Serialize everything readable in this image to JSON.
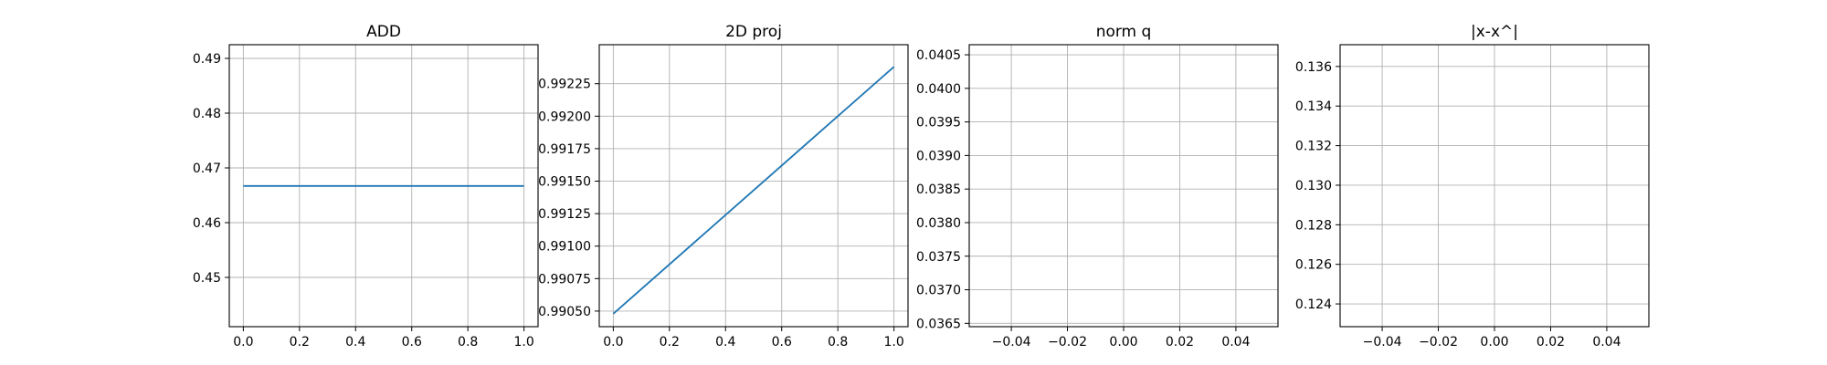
{
  "chart_data": [
    {
      "type": "line",
      "title": "ADD",
      "xlabel": "",
      "ylabel": "",
      "xlim": [
        -0.05,
        1.05
      ],
      "ylim": [
        0.441,
        0.4925
      ],
      "xticks": [
        "0.0",
        "0.2",
        "0.4",
        "0.6",
        "0.8",
        "1.0"
      ],
      "xtick_values": [
        0.0,
        0.2,
        0.4,
        0.6,
        0.8,
        1.0
      ],
      "yticks": [
        "0.45",
        "0.46",
        "0.47",
        "0.48",
        "0.49"
      ],
      "ytick_values": [
        0.45,
        0.46,
        0.47,
        0.48,
        0.49
      ],
      "grid": true,
      "series": [
        {
          "x": [
            0.0,
            1.0
          ],
          "y": [
            0.4667,
            0.4667
          ],
          "color": "#1f77b4"
        }
      ]
    },
    {
      "type": "line",
      "title": "2D proj",
      "xlabel": "",
      "ylabel": "",
      "xlim": [
        -0.05,
        1.05
      ],
      "ylim": [
        0.99038,
        0.99255
      ],
      "xticks": [
        "0.0",
        "0.2",
        "0.4",
        "0.6",
        "0.8",
        "1.0"
      ],
      "xtick_values": [
        0.0,
        0.2,
        0.4,
        0.6,
        0.8,
        1.0
      ],
      "yticks": [
        "0.99050",
        "0.99075",
        "0.99100",
        "0.99125",
        "0.99150",
        "0.99175",
        "0.99200",
        "0.99225"
      ],
      "ytick_values": [
        0.9905,
        0.99075,
        0.991,
        0.99125,
        0.9915,
        0.99175,
        0.992,
        0.99225
      ],
      "grid": true,
      "series": [
        {
          "x": [
            0.0,
            1.0
          ],
          "y": [
            0.99048,
            0.99238
          ],
          "color": "#1f77b4"
        }
      ]
    },
    {
      "type": "line",
      "title": "norm q",
      "xlabel": "",
      "ylabel": "",
      "xlim": [
        -0.055,
        0.055
      ],
      "ylim": [
        0.03645,
        0.04065
      ],
      "xticks": [
        "−0.04",
        "−0.02",
        "0.00",
        "0.02",
        "0.04"
      ],
      "xtick_values": [
        -0.04,
        -0.02,
        0.0,
        0.02,
        0.04
      ],
      "yticks": [
        "0.0365",
        "0.0370",
        "0.0375",
        "0.0380",
        "0.0385",
        "0.0390",
        "0.0395",
        "0.0400",
        "0.0405"
      ],
      "ytick_values": [
        0.0365,
        0.037,
        0.0375,
        0.038,
        0.0385,
        0.039,
        0.0395,
        0.04,
        0.0405
      ],
      "grid": true,
      "series": []
    },
    {
      "type": "line",
      "title": "|x-x^|",
      "xlabel": "",
      "ylabel": "",
      "xlim": [
        -0.055,
        0.055
      ],
      "ylim": [
        0.12285,
        0.1371
      ],
      "xticks": [
        "−0.04",
        "−0.02",
        "0.00",
        "0.02",
        "0.04"
      ],
      "xtick_values": [
        -0.04,
        -0.02,
        0.0,
        0.02,
        0.04
      ],
      "yticks": [
        "0.124",
        "0.126",
        "0.128",
        "0.130",
        "0.132",
        "0.134",
        "0.136"
      ],
      "ytick_values": [
        0.124,
        0.126,
        0.128,
        0.13,
        0.132,
        0.134,
        0.136
      ],
      "grid": true,
      "series": []
    }
  ]
}
